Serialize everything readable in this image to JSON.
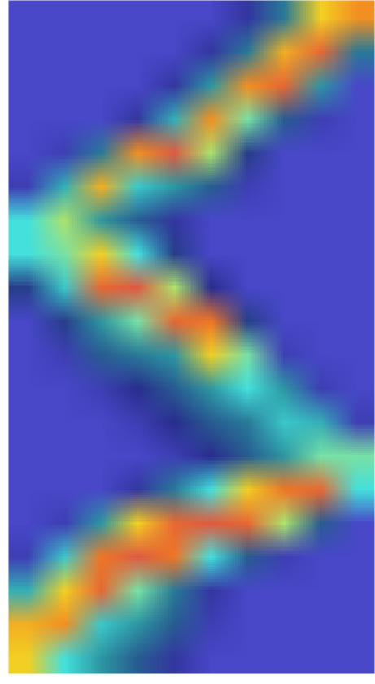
{
  "chart_data": {
    "type": "heatmap",
    "tick_labels": false,
    "color_range": [
      0,
      1
    ],
    "cells": [
      [
        0,
        0,
        0,
        0,
        0,
        0,
        0.1,
        0.3,
        0.7,
        0.8
      ],
      [
        0,
        0,
        0,
        0,
        0,
        0.1,
        0.3,
        0.75,
        0.9,
        0.3
      ],
      [
        0,
        0,
        0,
        0,
        0.1,
        0.35,
        0.8,
        0.9,
        0.35,
        0
      ],
      [
        0,
        0,
        0,
        0.1,
        0.4,
        0.8,
        0.55,
        0.25,
        0.05,
        0
      ],
      [
        0,
        0.05,
        0.3,
        0.8,
        0.95,
        0.6,
        0.2,
        0,
        0,
        0
      ],
      [
        0.05,
        0.4,
        0.75,
        0.45,
        0.35,
        0.25,
        0.05,
        0,
        0,
        0
      ],
      [
        0.5,
        0.6,
        0.35,
        0.25,
        0.1,
        0,
        0,
        0,
        0,
        0
      ],
      [
        0.5,
        0.55,
        0.7,
        0.5,
        0.2,
        0,
        0,
        0,
        0,
        0
      ],
      [
        0.2,
        0.45,
        0.9,
        0.95,
        0.6,
        0.15,
        0,
        0,
        0,
        0
      ],
      [
        0,
        0.2,
        0.35,
        0.55,
        0.9,
        0.85,
        0.2,
        0,
        0,
        0
      ],
      [
        0,
        0.05,
        0.25,
        0.3,
        0.35,
        0.7,
        0.55,
        0.05,
        0,
        0
      ],
      [
        0,
        0,
        0.05,
        0.15,
        0.25,
        0.35,
        0.5,
        0.35,
        0.05,
        0
      ],
      [
        0,
        0,
        0,
        0.05,
        0.15,
        0.25,
        0.3,
        0.45,
        0.4,
        0.05
      ],
      [
        0,
        0,
        0,
        0,
        0.05,
        0.15,
        0.25,
        0.35,
        0.55,
        0.55
      ],
      [
        0,
        0,
        0,
        0.1,
        0.3,
        0.5,
        0.7,
        0.85,
        0.9,
        0.5
      ],
      [
        0,
        0.05,
        0.35,
        0.7,
        0.9,
        0.95,
        0.9,
        0.6,
        0.25,
        0
      ],
      [
        0.05,
        0.45,
        0.85,
        0.95,
        0.85,
        0.5,
        0.25,
        0.05,
        0,
        0
      ],
      [
        0.4,
        0.7,
        0.9,
        0.55,
        0.3,
        0.1,
        0,
        0,
        0,
        0
      ],
      [
        0.75,
        0.8,
        0.45,
        0.35,
        0.25,
        0.05,
        0,
        0,
        0,
        0
      ],
      [
        0.7,
        0.5,
        0.35,
        0.25,
        0.1,
        0,
        0,
        0,
        0,
        0
      ]
    ]
  }
}
